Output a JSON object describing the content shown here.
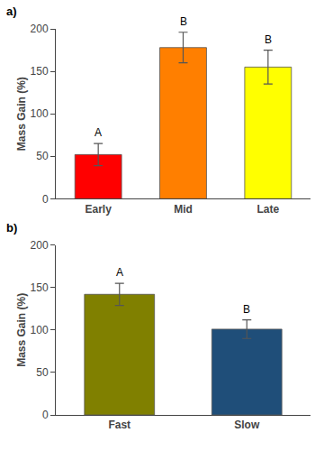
{
  "chart_data": [
    {
      "type": "bar",
      "title": "a)",
      "categories": [
        "Early",
        "Mid",
        "Late"
      ],
      "values": [
        52,
        178,
        155
      ],
      "errors": [
        13,
        18,
        20
      ],
      "colors": [
        "#FF0000",
        "#FF7F00",
        "#FFFF00"
      ],
      "annotations": [
        "A",
        "B",
        "B"
      ],
      "ylabel": "Mass Gain (%)",
      "ylim": [
        0,
        200
      ],
      "yticks": [
        0,
        50,
        100,
        150,
        200
      ],
      "grid": false
    },
    {
      "type": "bar",
      "title": "b)",
      "categories": [
        "Fast",
        "Slow"
      ],
      "values": [
        142,
        101
      ],
      "errors": [
        13,
        11
      ],
      "colors": [
        "#808000",
        "#1F4E79"
      ],
      "annotations": [
        "A",
        "B"
      ],
      "ylabel": "Mass Gain (%)",
      "ylim": [
        0,
        200
      ],
      "yticks": [
        0,
        50,
        100,
        150,
        200
      ],
      "grid": false
    }
  ]
}
